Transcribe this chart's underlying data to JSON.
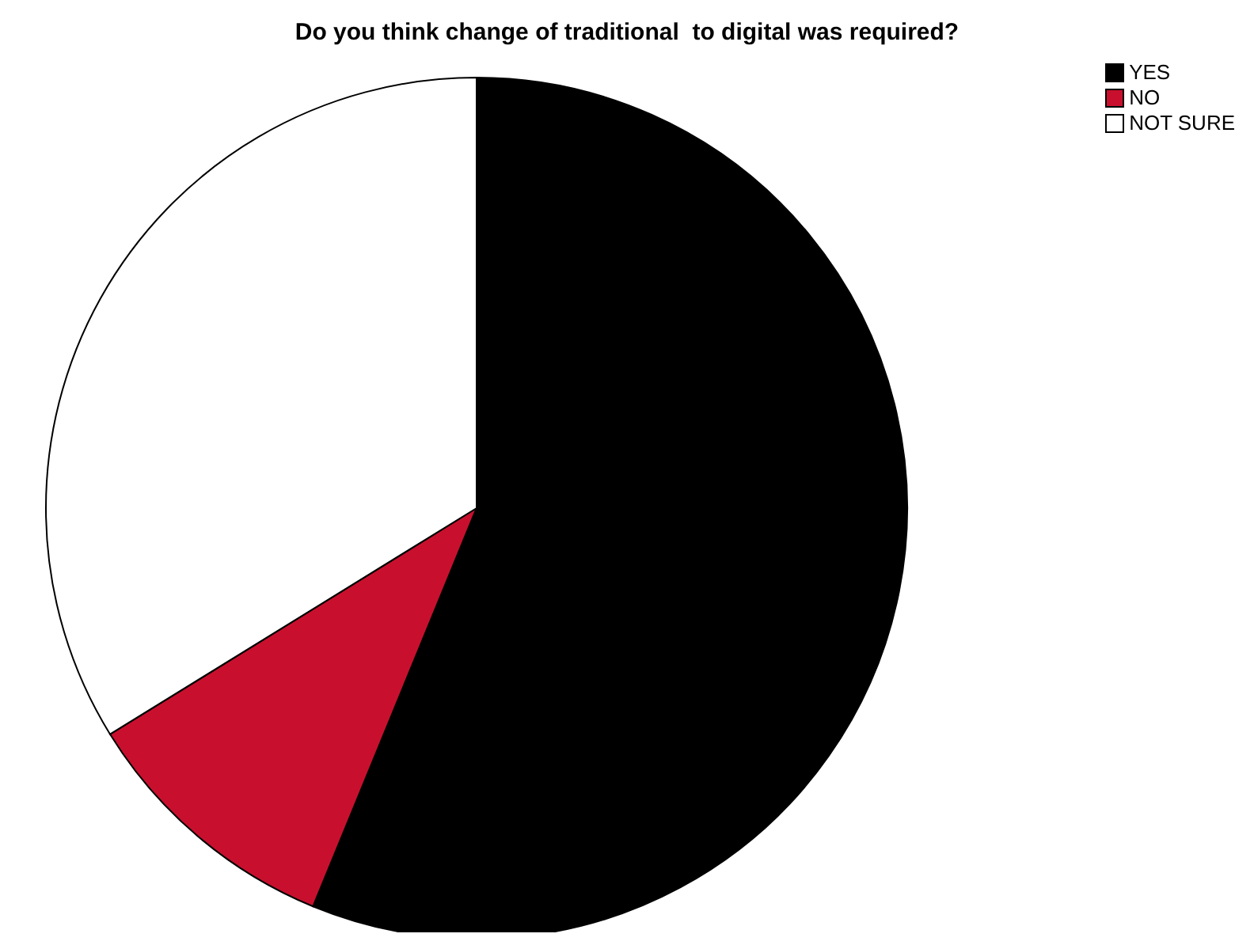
{
  "chart_data": {
    "type": "pie",
    "title": "Do you think change of traditional  to digital was required?",
    "categories": [
      "YES",
      "NO",
      "NOT SURE"
    ],
    "values": [
      56.2,
      10,
      33.8
    ],
    "colors": [
      "#000000",
      "#c8102e",
      "#ffffff"
    ],
    "legend": "top right"
  }
}
